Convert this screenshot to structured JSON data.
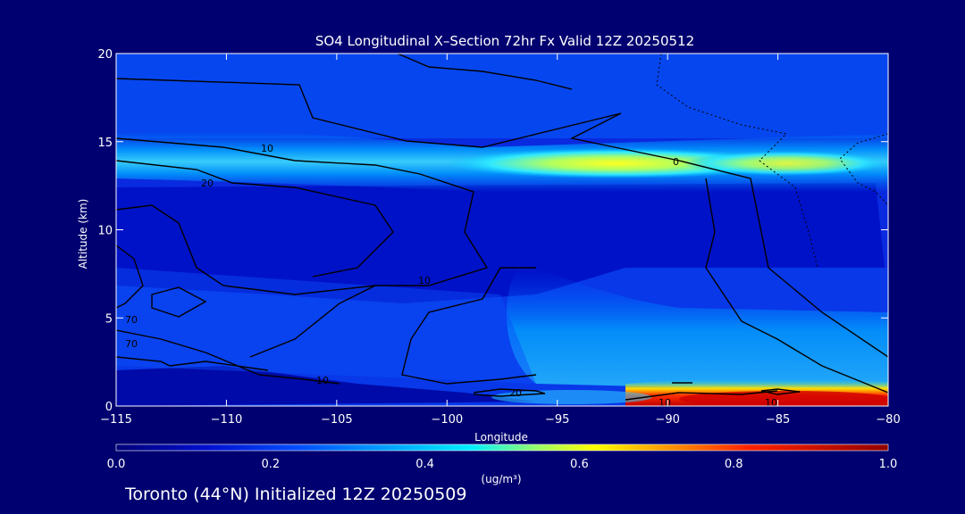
{
  "chart_data": {
    "type": "heatmap",
    "title": "SO4 Longitudinal X–Section 72hr  Fx Valid 12Z 20250512",
    "xlabel": "Longitude",
    "ylabel": "Altitude (km)",
    "xlim": [
      -115,
      -80
    ],
    "ylim": [
      0,
      20
    ],
    "xticks": [
      "−115",
      "−110",
      "−105",
      "−100",
      "−95",
      "−90",
      "−85",
      "−80"
    ],
    "yticks": [
      "0",
      "5",
      "10",
      "15",
      "20"
    ],
    "colorbar": {
      "min": 0.0,
      "max": 1.0,
      "ticks": [
        "0.0",
        "0.2",
        "0.4",
        "0.6",
        "0.8",
        "1.0"
      ],
      "units": "(ug/m³)"
    },
    "contour_labels": [
      "10",
      "20",
      "0",
      "10",
      "70",
      "70",
      "10",
      "20",
      "10",
      "10"
    ],
    "features": [
      {
        "name": "upper-layer",
        "lon": [
          -97,
          -80
        ],
        "alt_km": [
          12.5,
          14.5
        ],
        "max_value": 0.7
      },
      {
        "name": "surface-plume",
        "lon": [
          -92,
          -80
        ],
        "alt_km": [
          0,
          1.2
        ],
        "max_value": 1.0
      }
    ]
  },
  "footer": {
    "caption": "Toronto (44°N) Initialized 12Z 20250509"
  }
}
